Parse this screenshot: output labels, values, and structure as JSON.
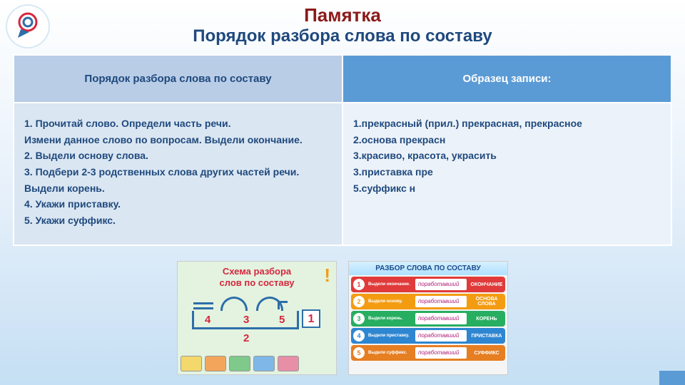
{
  "header": {
    "title1": "Памятка",
    "title2": "Порядок разбора слова по составу",
    "title1_color": "#8b1a1a",
    "title2_color": "#1f497d"
  },
  "table": {
    "header_left": "Порядок разбора слова по составу",
    "header_right": "Образец записи:",
    "th_left_bg": "#b9cde6",
    "th_right_bg": "#5b9bd5",
    "td_left_bg": "#dae6f2",
    "td_right_bg": "#ecf2f9",
    "left_lines": [
      "1.     Прочитай слово. Определи часть речи.",
      "Измени данное слово по вопросам. Выдели окончание.",
      "2.     Выдели основу слова.",
      "3.     Подбери 2-3 родственных слова других частей речи.",
      "Выдели корень.",
      "4.     Укажи приставку.",
      "5.     Укажи суффикс."
    ],
    "right_lines": [
      "1.прекрасный  (прил.) прекрасная, прекрасное",
      "2.основа прекрасн",
      "3.красиво, красота, украсить",
      "3.приставка пре",
      "5.суффикс н"
    ]
  },
  "img_left": {
    "caption_l1": "Схема разбора",
    "caption_l2": "слов по составу",
    "nums": {
      "n1": "1",
      "n2": "2",
      "n3": "3",
      "n4": "4",
      "n5": "5"
    },
    "bus_colors": [
      "#f3d96b",
      "#f3a55b",
      "#7fc98a",
      "#7fb8e8",
      "#e88fa8"
    ]
  },
  "img_right": {
    "header": "РАЗБОР СЛОВА ПО СОСТАВУ",
    "rows": [
      {
        "n": "1",
        "bg": "#e03a3a",
        "lab": "Выдели окончание.",
        "word": "поработавший",
        "tag": "ОКОНЧАНИЕ"
      },
      {
        "n": "2",
        "bg": "#f39c12",
        "lab": "Выдели основу.",
        "word": "поработавший",
        "tag": "ОСНОВА СЛОВА"
      },
      {
        "n": "3",
        "bg": "#27ae60",
        "lab": "Выдели корень.",
        "word": "поработавший",
        "tag": "КОРЕНЬ"
      },
      {
        "n": "4",
        "bg": "#2e86d1",
        "lab": "Выдели приставку.",
        "word": "поработавший",
        "tag": "ПРИСТАВКА"
      },
      {
        "n": "5",
        "bg": "#e67e22",
        "lab": "Выдели суффикс.",
        "word": "поработавший",
        "tag": "СУФФИКС"
      }
    ]
  }
}
